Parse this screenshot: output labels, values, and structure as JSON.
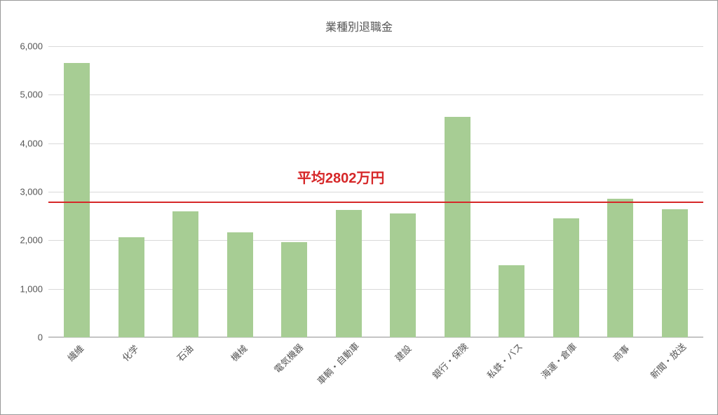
{
  "chart": {
    "type": "bar",
    "title": "業種別退職金",
    "title_fontsize": 16,
    "title_color": "#555555",
    "categories": [
      "繊維",
      "化学",
      "石油",
      "機械",
      "電気機器",
      "車輌・自動車",
      "建設",
      "銀行・保険",
      "私鉄・バス",
      "海運・倉庫",
      "商事",
      "新聞・放送"
    ],
    "values": [
      5650,
      2060,
      2600,
      2170,
      1960,
      2630,
      2560,
      4540,
      1480,
      2450,
      2850,
      2640
    ],
    "bar_color": "#a7cd94",
    "ylim": [
      0,
      6000
    ],
    "ytick_step": 1000,
    "y_tick_labels": [
      "0",
      "1,000",
      "2,000",
      "3,000",
      "4,000",
      "5,000",
      "6,000"
    ],
    "grid_color": "#d9d9d9",
    "background_color": "#ffffff",
    "border_color": "#999999",
    "label_fontsize": 13,
    "label_color": "#555555",
    "x_label_rotation": -45,
    "bar_width": 0.48,
    "reference_line": {
      "value": 2802,
      "label": "平均2802万円",
      "color": "#d62728",
      "label_color": "#d62728",
      "label_fontsize": 20,
      "line_width": 2
    }
  }
}
